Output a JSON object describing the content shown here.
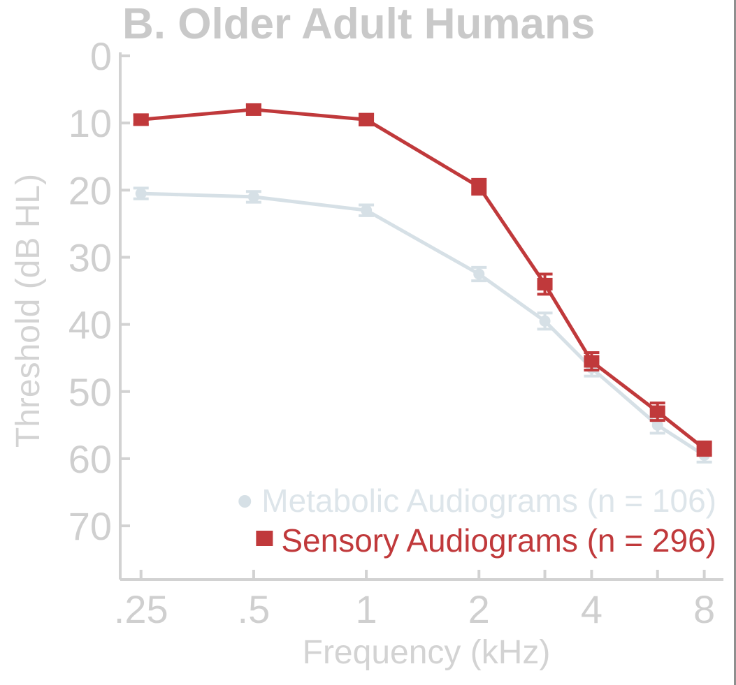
{
  "chart_data": {
    "type": "line",
    "title": "B. Older Adult Humans",
    "xlabel": "Frequency (kHz)",
    "ylabel": "Threshold (dB HL)",
    "x_tick_labels": [
      ".25",
      ".5",
      "1",
      "2",
      "4",
      "8"
    ],
    "x_tick_values": [
      0.25,
      0.5,
      1,
      2,
      4,
      8
    ],
    "x_minor_ticks": [
      3,
      6
    ],
    "x_scale": "log",
    "xlim": [
      0.22,
      9.0
    ],
    "y_tick_labels": [
      "0",
      "10",
      "20",
      "30",
      "40",
      "50",
      "60",
      "70"
    ],
    "y_tick_values": [
      0,
      10,
      20,
      30,
      40,
      50,
      60,
      70
    ],
    "ylim": [
      0,
      78
    ],
    "y_inverted": true,
    "legend_position": "bottom-right",
    "series": [
      {
        "name": "Metabolic Audiograms (n = 106)",
        "marker": "circle",
        "color": "#d6e0e6",
        "x": [
          0.25,
          0.5,
          1,
          2,
          3,
          4,
          6,
          8
        ],
        "y": [
          20.5,
          21.0,
          23.0,
          32.5,
          39.5,
          46.5,
          55.0,
          59.5
        ],
        "error": [
          0.8,
          0.8,
          0.8,
          1.0,
          1.2,
          1.2,
          1.2,
          1.0
        ]
      },
      {
        "name": "Sensory Audiograms (n = 296)",
        "marker": "square",
        "color": "#c0393b",
        "x": [
          0.25,
          0.5,
          1,
          2,
          3,
          4,
          6,
          8
        ],
        "y": [
          9.5,
          8.0,
          9.5,
          19.5,
          34.0,
          45.5,
          53.0,
          58.5
        ],
        "error": [
          0.7,
          0.7,
          0.8,
          1.1,
          1.5,
          1.3,
          1.3,
          1.0
        ]
      }
    ]
  }
}
